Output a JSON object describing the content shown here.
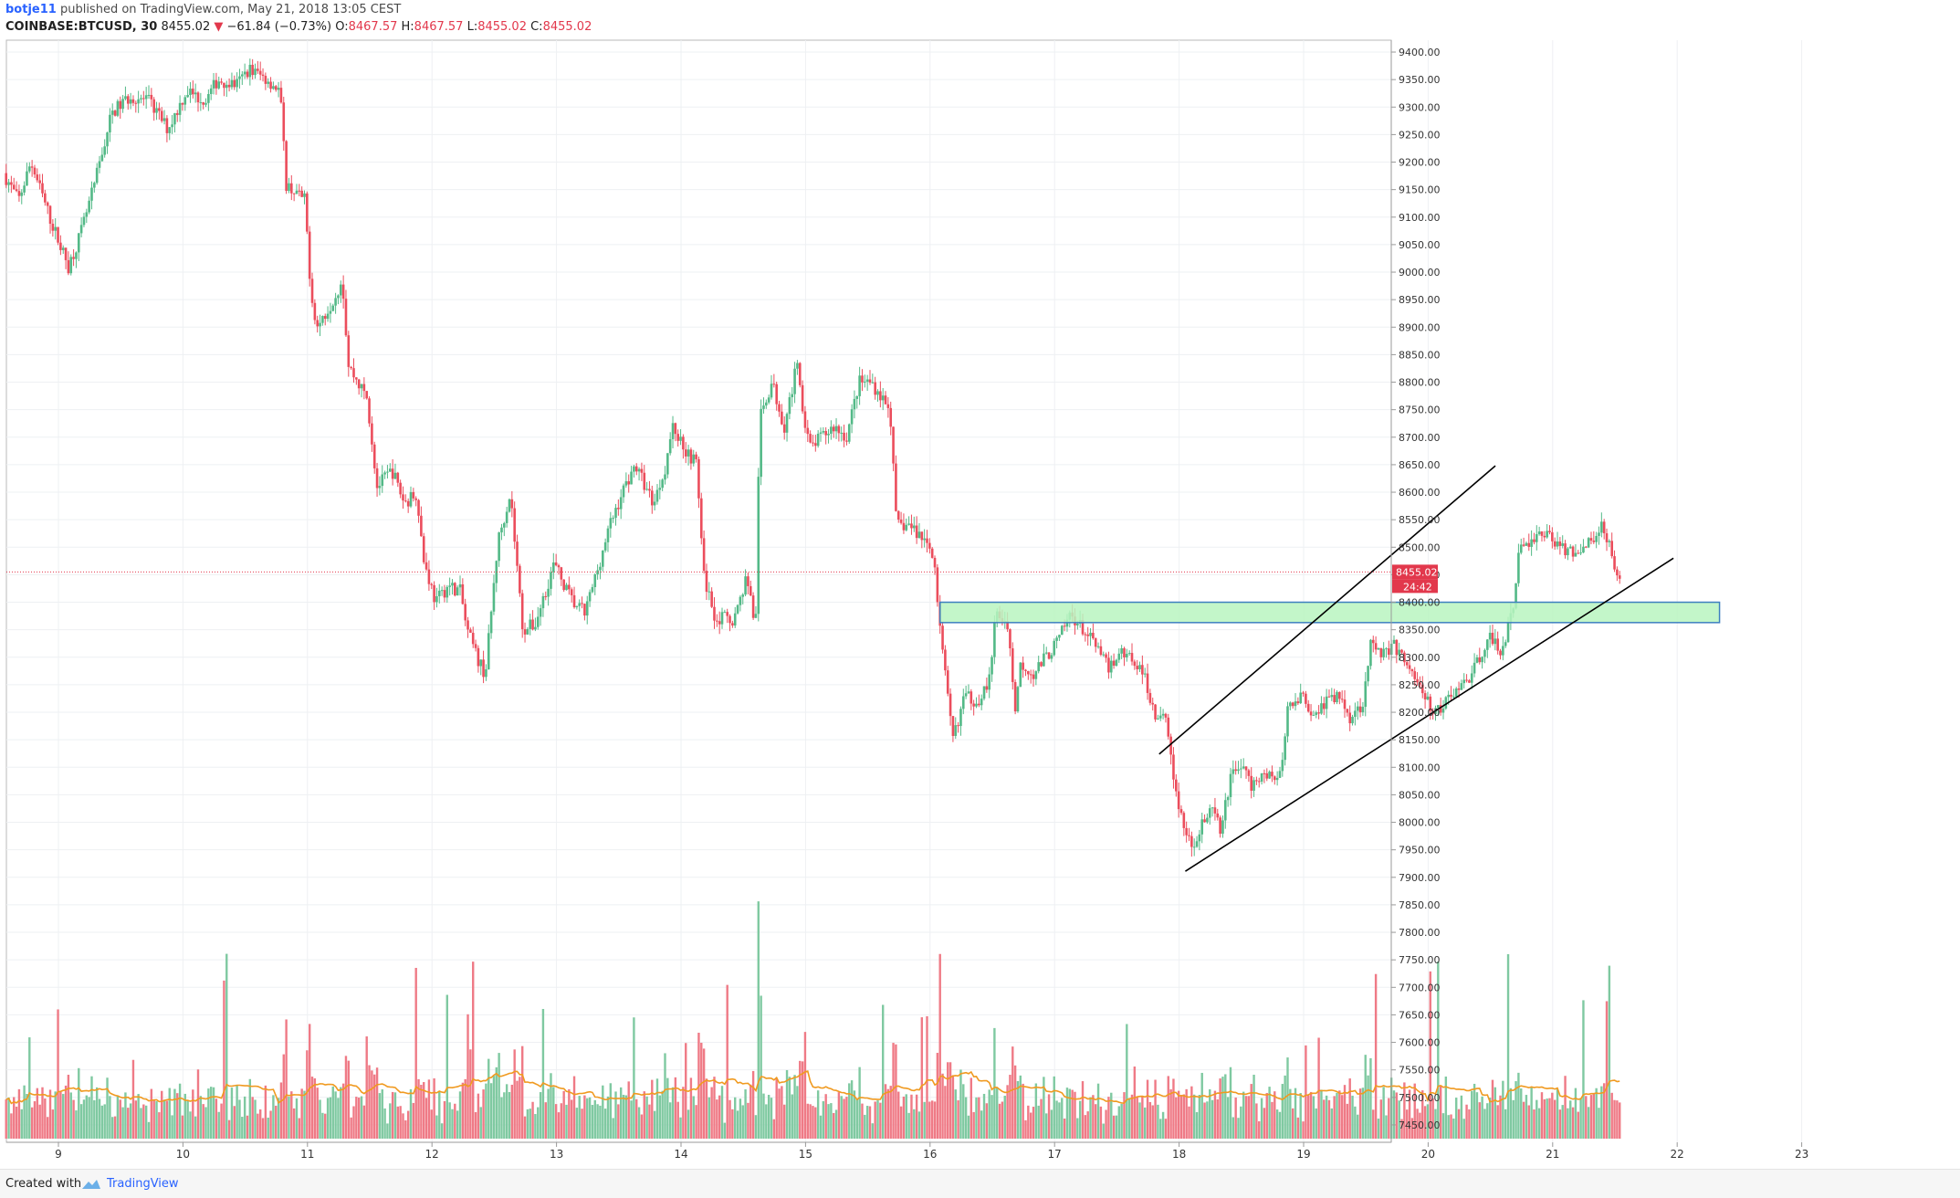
{
  "header": {
    "user": "botje11",
    "published": "published on TradingView.com, May 21, 2018 13:05 CEST",
    "symbol": "COINBASE:BTCUSD, 30",
    "last": "8455.02",
    "change": "−61.84 (−0.73%)",
    "o_label": "O:",
    "o": "8467.57",
    "h_label": "H:",
    "h": "8467.57",
    "l_label": "L:",
    "l": "8455.02",
    "c_label": "C:",
    "c": "8455.02"
  },
  "footer": {
    "created": "Created with",
    "brand": "TradingView"
  },
  "colors": {
    "up": "#53b987",
    "down": "#eb4d5c",
    "volume_ma": "#f09a20",
    "channel": "#000000",
    "zone_fill": "#b9f5c0",
    "zone_stroke": "#3d7fbf",
    "price_line": "#e2384c"
  },
  "chart_data": {
    "type": "candlestick",
    "timeframe": "30",
    "y_axis": {
      "min": 7425,
      "max": 9410,
      "ticks": [
        "9400.00",
        "9350.00",
        "9300.00",
        "9250.00",
        "9200.00",
        "9150.00",
        "9100.00",
        "9050.00",
        "9000.00",
        "8950.00",
        "8900.00",
        "8850.00",
        "8800.00",
        "8750.00",
        "8700.00",
        "8650.00",
        "8600.00",
        "8550.00",
        "8500.00",
        "8450.00",
        "8400.00",
        "8350.00",
        "8300.00",
        "8250.00",
        "8200.00",
        "8150.00",
        "8100.00",
        "8050.00",
        "8000.00",
        "7950.00",
        "7900.00",
        "7850.00",
        "7800.00",
        "7750.00",
        "7700.00",
        "7650.00",
        "7600.00",
        "7550.00",
        "7500.00",
        "7450.00"
      ]
    },
    "x_axis": {
      "day_min": 8.58,
      "day_max": 23.9,
      "ticks": [
        {
          "day": 9,
          "label": "9"
        },
        {
          "day": 10,
          "label": "10"
        },
        {
          "day": 11,
          "label": "11"
        },
        {
          "day": 12,
          "label": "12"
        },
        {
          "day": 13,
          "label": "13"
        },
        {
          "day": 14,
          "label": "14"
        },
        {
          "day": 15,
          "label": "15"
        },
        {
          "day": 16,
          "label": "16"
        },
        {
          "day": 17,
          "label": "17"
        },
        {
          "day": 18,
          "label": "18"
        },
        {
          "day": 19,
          "label": "19"
        },
        {
          "day": 20,
          "label": "20"
        },
        {
          "day": 21,
          "label": "21"
        },
        {
          "day": 22,
          "label": "22"
        },
        {
          "day": 23,
          "label": "23"
        }
      ]
    },
    "price_path": [
      [
        8.58,
        9180
      ],
      [
        8.7,
        9130
      ],
      [
        8.8,
        9200
      ],
      [
        8.95,
        9100
      ],
      [
        9.1,
        9010
      ],
      [
        9.2,
        9070
      ],
      [
        9.3,
        9150
      ],
      [
        9.45,
        9290
      ],
      [
        9.6,
        9320
      ],
      [
        9.75,
        9310
      ],
      [
        9.9,
        9260
      ],
      [
        10.05,
        9330
      ],
      [
        10.2,
        9310
      ],
      [
        10.3,
        9350
      ],
      [
        10.45,
        9340
      ],
      [
        10.55,
        9370
      ],
      [
        10.7,
        9350
      ],
      [
        10.8,
        9330
      ],
      [
        10.85,
        9160
      ],
      [
        11.0,
        9130
      ],
      [
        11.05,
        8960
      ],
      [
        11.1,
        8900
      ],
      [
        11.25,
        8960
      ],
      [
        11.3,
        8990
      ],
      [
        11.35,
        8830
      ],
      [
        11.5,
        8770
      ],
      [
        11.58,
        8610
      ],
      [
        11.7,
        8640
      ],
      [
        11.8,
        8580
      ],
      [
        11.9,
        8600
      ],
      [
        11.95,
        8480
      ],
      [
        12.05,
        8400
      ],
      [
        12.15,
        8430
      ],
      [
        12.25,
        8420
      ],
      [
        12.3,
        8350
      ],
      [
        12.4,
        8290
      ],
      [
        12.45,
        8270
      ],
      [
        12.55,
        8510
      ],
      [
        12.65,
        8600
      ],
      [
        12.75,
        8350
      ],
      [
        12.85,
        8360
      ],
      [
        13.0,
        8470
      ],
      [
        13.15,
        8400
      ],
      [
        13.25,
        8380
      ],
      [
        13.35,
        8460
      ],
      [
        13.45,
        8540
      ],
      [
        13.55,
        8600
      ],
      [
        13.65,
        8650
      ],
      [
        13.8,
        8580
      ],
      [
        13.9,
        8650
      ],
      [
        13.95,
        8720
      ],
      [
        14.05,
        8680
      ],
      [
        14.15,
        8650
      ],
      [
        14.2,
        8450
      ],
      [
        14.3,
        8370
      ],
      [
        14.45,
        8370
      ],
      [
        14.55,
        8450
      ],
      [
        14.62,
        8350
      ],
      [
        14.65,
        8730
      ],
      [
        14.75,
        8800
      ],
      [
        14.85,
        8720
      ],
      [
        14.95,
        8830
      ],
      [
        15.05,
        8680
      ],
      [
        15.15,
        8700
      ],
      [
        15.25,
        8720
      ],
      [
        15.35,
        8700
      ],
      [
        15.45,
        8800
      ],
      [
        15.55,
        8800
      ],
      [
        15.7,
        8750
      ],
      [
        15.75,
        8540
      ],
      [
        15.85,
        8540
      ],
      [
        15.95,
        8520
      ],
      [
        16.05,
        8490
      ],
      [
        16.1,
        8350
      ],
      [
        16.2,
        8150
      ],
      [
        16.3,
        8230
      ],
      [
        16.4,
        8220
      ],
      [
        16.5,
        8260
      ],
      [
        16.55,
        8380
      ],
      [
        16.65,
        8360
      ],
      [
        16.7,
        8200
      ],
      [
        16.75,
        8290
      ],
      [
        16.85,
        8270
      ],
      [
        16.95,
        8300
      ],
      [
        17.05,
        8330
      ],
      [
        17.15,
        8380
      ],
      [
        17.25,
        8350
      ],
      [
        17.35,
        8320
      ],
      [
        17.45,
        8280
      ],
      [
        17.55,
        8310
      ],
      [
        17.65,
        8300
      ],
      [
        17.75,
        8260
      ],
      [
        17.85,
        8180
      ],
      [
        17.92,
        8200
      ],
      [
        17.97,
        8080
      ],
      [
        18.05,
        8000
      ],
      [
        18.12,
        7950
      ],
      [
        18.2,
        8000
      ],
      [
        18.3,
        8020
      ],
      [
        18.35,
        7980
      ],
      [
        18.45,
        8100
      ],
      [
        18.55,
        8100
      ],
      [
        18.6,
        8060
      ],
      [
        18.7,
        8090
      ],
      [
        18.8,
        8080
      ],
      [
        18.85,
        8100
      ],
      [
        18.9,
        8220
      ],
      [
        19.0,
        8230
      ],
      [
        19.1,
        8200
      ],
      [
        19.2,
        8220
      ],
      [
        19.3,
        8230
      ],
      [
        19.4,
        8190
      ],
      [
        19.5,
        8220
      ],
      [
        19.55,
        8320
      ],
      [
        19.65,
        8310
      ],
      [
        19.75,
        8320
      ],
      [
        19.85,
        8290
      ],
      [
        19.95,
        8250
      ],
      [
        20.0,
        8220
      ],
      [
        20.1,
        8200
      ],
      [
        20.2,
        8230
      ],
      [
        20.3,
        8250
      ],
      [
        20.4,
        8280
      ],
      [
        20.5,
        8340
      ],
      [
        20.6,
        8310
      ],
      [
        20.7,
        8380
      ],
      [
        20.75,
        8500
      ],
      [
        20.85,
        8510
      ],
      [
        20.95,
        8530
      ],
      [
        21.05,
        8510
      ],
      [
        21.15,
        8490
      ],
      [
        21.25,
        8500
      ],
      [
        21.35,
        8510
      ],
      [
        21.42,
        8550
      ],
      [
        21.5,
        8480
      ],
      [
        21.55,
        8455
      ]
    ],
    "volume_range": [
      7425,
      7925
    ],
    "annotations": {
      "price_line": 8455.02,
      "last_price_label": "8455.02",
      "countdown_label": "24:42",
      "channel_upper": [
        [
          17.84,
          8124
        ],
        [
          20.54,
          8648
        ]
      ],
      "channel_lower": [
        [
          18.05,
          7911
        ],
        [
          21.97,
          8480
        ]
      ],
      "zone": {
        "day_start": 16.08,
        "day_end": 22.34,
        "price_low": 8363,
        "price_high": 8400
      }
    }
  }
}
